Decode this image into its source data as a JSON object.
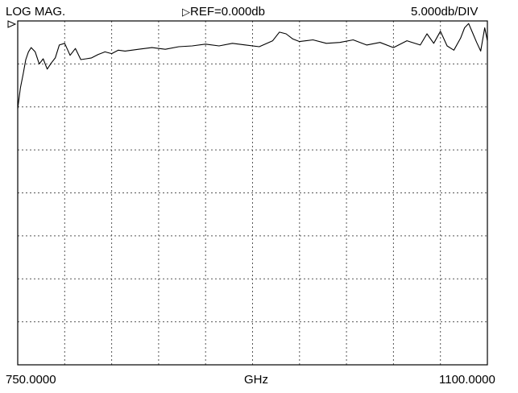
{
  "header": {
    "mode": "LOG MAG.",
    "ref_marker_icon": "triangle-marker-icon",
    "ref_label": "REF=0.000db",
    "scale_label": "5.000db/DIV"
  },
  "footer": {
    "x_start_label": "750.0000",
    "x_unit_label": "GHz",
    "x_stop_label": "1100.0000"
  },
  "chart_data": {
    "type": "line",
    "xlabel": "GHz",
    "ylabel": "",
    "xlim": [
      750,
      1100
    ],
    "ylim": [
      -40,
      0
    ],
    "y_reference": 0.0,
    "y_per_division": 5.0,
    "x_divisions": 10,
    "y_divisions": 8,
    "grid": true,
    "grid_style": "dotted",
    "line_color": "#000000",
    "series": [
      {
        "x": [
          750,
          752,
          754,
          756,
          758,
          760,
          763,
          766,
          769,
          772,
          775,
          778,
          781,
          785,
          789,
          793,
          797,
          801,
          805,
          810,
          815,
          820,
          825,
          830,
          840,
          850,
          860,
          870,
          880,
          890,
          900,
          910,
          920,
          930,
          940,
          945,
          950,
          955,
          960,
          970,
          980,
          990,
          1000,
          1010,
          1020,
          1030,
          1040,
          1050,
          1055,
          1060,
          1065,
          1070,
          1075,
          1080,
          1083,
          1086,
          1089,
          1092,
          1095,
          1098,
          1100
        ],
        "y": [
          -10.2,
          -7.8,
          -6.2,
          -4.5,
          -3.6,
          -3.1,
          -3.6,
          -5.0,
          -4.4,
          -5.6,
          -4.9,
          -4.3,
          -2.8,
          -2.6,
          -4.0,
          -3.2,
          -4.5,
          -4.4,
          -4.3,
          -3.9,
          -3.6,
          -3.8,
          -3.4,
          -3.5,
          -3.3,
          -3.1,
          -3.3,
          -3.0,
          -2.9,
          -2.7,
          -2.9,
          -2.6,
          -2.8,
          -3.0,
          -2.3,
          -1.3,
          -1.5,
          -2.1,
          -2.4,
          -2.2,
          -2.6,
          -2.5,
          -2.2,
          -2.8,
          -2.5,
          -3.1,
          -2.3,
          -2.8,
          -1.5,
          -2.6,
          -1.2,
          -2.9,
          -3.4,
          -2.0,
          -0.8,
          -0.3,
          -1.4,
          -2.5,
          -3.5,
          -0.8,
          -2.3
        ]
      }
    ]
  }
}
